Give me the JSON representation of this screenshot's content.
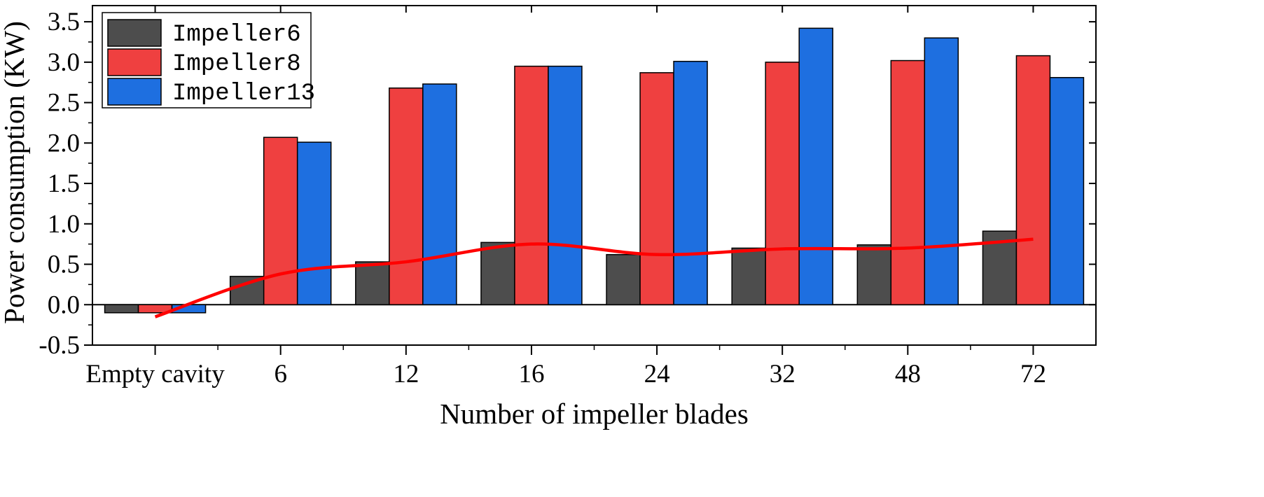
{
  "chart_data": {
    "type": "bar",
    "title": "",
    "xlabel": "Number of impeller blades",
    "ylabel": "Power consumption (KW)",
    "categories": [
      "Empty cavity",
      "6",
      "12",
      "16",
      "24",
      "32",
      "48",
      "72"
    ],
    "ylim": [
      -0.5,
      3.7
    ],
    "yticks": [
      "-0.5",
      "0.0",
      "0.5",
      "1.0",
      "1.5",
      "2.0",
      "2.5",
      "3.0",
      "3.5"
    ],
    "legend_position": "top-left",
    "series": [
      {
        "name": "Impeller6",
        "color": "#4d4d4d",
        "values": [
          -0.1,
          0.35,
          0.53,
          0.77,
          0.62,
          0.7,
          0.74,
          0.91
        ]
      },
      {
        "name": "Impeller8",
        "color": "#ef4040",
        "values": [
          -0.1,
          2.07,
          2.68,
          2.95,
          2.87,
          3.0,
          3.02,
          3.08
        ]
      },
      {
        "name": "Impeller13",
        "color": "#1e6fe0",
        "values": [
          -0.1,
          2.01,
          2.73,
          2.95,
          3.01,
          3.42,
          3.3,
          2.81
        ]
      }
    ],
    "trend_line": {
      "color": "#ff0000",
      "values": [
        -0.15,
        0.38,
        0.53,
        0.75,
        0.62,
        0.69,
        0.7,
        0.81
      ]
    }
  }
}
